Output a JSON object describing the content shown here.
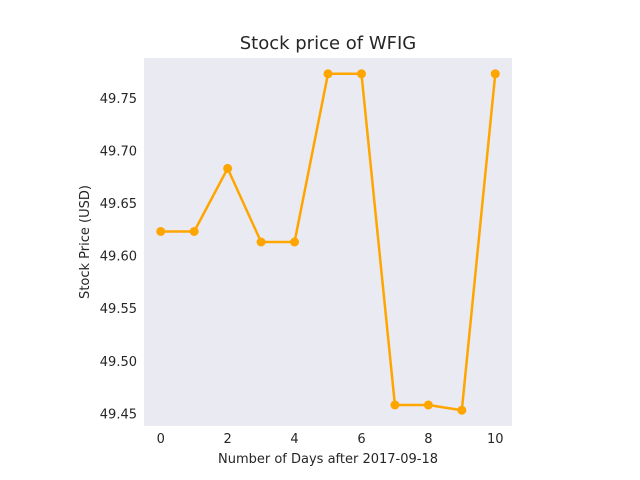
{
  "chart_data": {
    "type": "line",
    "title": "Stock price of WFIG",
    "xlabel": "Number of Days after 2017-09-18",
    "ylabel": "Stock Price (USD)",
    "x": [
      0,
      1,
      2,
      3,
      4,
      5,
      6,
      7,
      8,
      9,
      10
    ],
    "series": [
      {
        "values": [
          49.623,
          49.623,
          49.683,
          49.613,
          49.613,
          49.773,
          49.773,
          49.458,
          49.458,
          49.453,
          49.773
        ]
      }
    ],
    "xlim": [
      -0.5,
      10.5
    ],
    "ylim": [
      49.438,
      49.788
    ],
    "xticks": [
      0,
      2,
      4,
      6,
      8,
      10
    ],
    "yticks": [
      49.45,
      49.5,
      49.55,
      49.6,
      49.65,
      49.7,
      49.75
    ],
    "ytick_labels": [
      "49.45",
      "49.50",
      "49.55",
      "49.60",
      "49.65",
      "49.70",
      "49.75"
    ],
    "grid": false,
    "colors": {
      "line": "#FFA500",
      "plot_background": "#EAEAF2",
      "text": "#262626"
    }
  }
}
